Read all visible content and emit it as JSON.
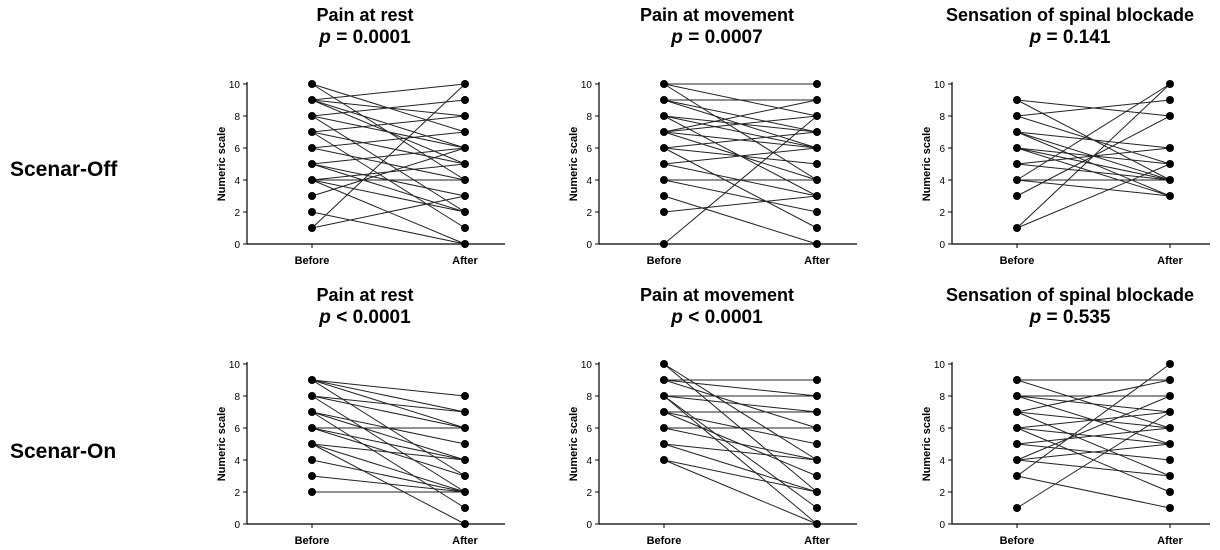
{
  "row_labels": [
    "Scenar-Off",
    "Scenar-On"
  ],
  "chart_data": [
    {
      "type": "line",
      "group": "Scenar-Off",
      "title": "Pain at rest",
      "p_label": "p",
      "p_op": "=",
      "p_value": "0.0001",
      "ylabel": "Numeric scale",
      "categories": [
        "Before",
        "After"
      ],
      "ylim": [
        0,
        10
      ],
      "yticks": [
        0,
        2,
        4,
        6,
        8,
        10
      ],
      "pairs": [
        [
          10,
          4
        ],
        [
          10,
          7
        ],
        [
          9,
          10
        ],
        [
          9,
          8
        ],
        [
          9,
          5
        ],
        [
          9,
          6
        ],
        [
          8,
          9
        ],
        [
          8,
          2
        ],
        [
          8,
          6
        ],
        [
          7,
          8
        ],
        [
          7,
          1
        ],
        [
          7,
          5
        ],
        [
          6,
          7
        ],
        [
          6,
          4
        ],
        [
          5,
          6
        ],
        [
          5,
          3
        ],
        [
          5,
          2
        ],
        [
          4,
          5
        ],
        [
          4,
          4
        ],
        [
          4,
          0
        ],
        [
          4,
          2
        ],
        [
          3,
          6
        ],
        [
          2,
          0
        ],
        [
          1,
          3
        ],
        [
          1,
          10
        ]
      ]
    },
    {
      "type": "line",
      "group": "Scenar-Off",
      "title": "Pain at movement",
      "p_label": "p",
      "p_op": "=",
      "p_value": "0.0007",
      "ylabel": "Numeric scale",
      "categories": [
        "Before",
        "After"
      ],
      "ylim": [
        0,
        10
      ],
      "yticks": [
        0,
        2,
        4,
        6,
        8,
        10
      ],
      "pairs": [
        [
          10,
          10
        ],
        [
          10,
          8
        ],
        [
          10,
          4
        ],
        [
          9,
          7
        ],
        [
          9,
          9
        ],
        [
          9,
          6
        ],
        [
          8,
          7
        ],
        [
          8,
          6
        ],
        [
          8,
          3
        ],
        [
          7,
          8
        ],
        [
          7,
          6
        ],
        [
          7,
          9
        ],
        [
          7,
          4
        ],
        [
          6,
          7
        ],
        [
          6,
          5
        ],
        [
          6,
          1
        ],
        [
          5,
          6
        ],
        [
          5,
          3
        ],
        [
          4,
          4
        ],
        [
          4,
          2
        ],
        [
          3,
          0
        ],
        [
          2,
          3
        ],
        [
          0,
          8
        ]
      ]
    },
    {
      "type": "line",
      "group": "Scenar-Off",
      "title": "Sensation of spinal blockade",
      "p_label": "p",
      "p_op": "=",
      "p_value": "0.141",
      "ylabel": "Numeric scale",
      "categories": [
        "Before",
        "After"
      ],
      "ylim": [
        0,
        10
      ],
      "yticks": [
        0,
        2,
        4,
        6,
        8,
        10
      ],
      "pairs": [
        [
          9,
          8
        ],
        [
          9,
          4
        ],
        [
          8,
          5
        ],
        [
          8,
          9
        ],
        [
          7,
          6
        ],
        [
          7,
          3
        ],
        [
          7,
          4
        ],
        [
          6,
          5
        ],
        [
          6,
          4
        ],
        [
          6,
          3
        ],
        [
          5,
          6
        ],
        [
          5,
          4
        ],
        [
          4,
          4
        ],
        [
          4,
          10
        ],
        [
          4,
          3
        ],
        [
          3,
          8
        ],
        [
          1,
          10
        ],
        [
          1,
          5
        ]
      ]
    },
    {
      "type": "line",
      "group": "Scenar-On",
      "title": "Pain at rest",
      "p_label": "p",
      "p_op": "<",
      "p_value": "0.0001",
      "ylabel": "Numeric scale",
      "categories": [
        "Before",
        "After"
      ],
      "ylim": [
        0,
        10
      ],
      "yticks": [
        0,
        2,
        4,
        6,
        8,
        10
      ],
      "pairs": [
        [
          9,
          8
        ],
        [
          9,
          7
        ],
        [
          9,
          6
        ],
        [
          9,
          3
        ],
        [
          8,
          7
        ],
        [
          8,
          6
        ],
        [
          8,
          2
        ],
        [
          7,
          5
        ],
        [
          7,
          4
        ],
        [
          7,
          1
        ],
        [
          6,
          6
        ],
        [
          6,
          4
        ],
        [
          6,
          3
        ],
        [
          5,
          4
        ],
        [
          5,
          2
        ],
        [
          5,
          0
        ],
        [
          4,
          2
        ],
        [
          3,
          2
        ],
        [
          2,
          2
        ]
      ]
    },
    {
      "type": "line",
      "group": "Scenar-On",
      "title": "Pain at movement",
      "p_label": "p",
      "p_op": "<",
      "p_value": "0.0001",
      "ylabel": "Numeric scale",
      "categories": [
        "Before",
        "After"
      ],
      "ylim": [
        0,
        10
      ],
      "yticks": [
        0,
        2,
        4,
        6,
        8,
        10
      ],
      "pairs": [
        [
          10,
          4
        ],
        [
          10,
          2
        ],
        [
          9,
          9
        ],
        [
          9,
          8
        ],
        [
          9,
          6
        ],
        [
          8,
          8
        ],
        [
          8,
          7
        ],
        [
          8,
          1
        ],
        [
          8,
          0
        ],
        [
          7,
          7
        ],
        [
          7,
          5
        ],
        [
          7,
          3
        ],
        [
          6,
          6
        ],
        [
          6,
          4
        ],
        [
          5,
          4
        ],
        [
          5,
          2
        ],
        [
          4,
          2
        ],
        [
          4,
          0
        ]
      ]
    },
    {
      "type": "line",
      "group": "Scenar-On",
      "title": "Sensation of spinal blockade",
      "p_label": "p",
      "p_op": "=",
      "p_value": "0.535",
      "ylabel": "Numeric scale",
      "categories": [
        "Before",
        "After"
      ],
      "ylim": [
        0,
        10
      ],
      "yticks": [
        0,
        2,
        4,
        6,
        8,
        10
      ],
      "pairs": [
        [
          9,
          9
        ],
        [
          9,
          6
        ],
        [
          8,
          7
        ],
        [
          8,
          8
        ],
        [
          8,
          5
        ],
        [
          7,
          9
        ],
        [
          7,
          6
        ],
        [
          7,
          3
        ],
        [
          6,
          5
        ],
        [
          6,
          7
        ],
        [
          6,
          2
        ],
        [
          5,
          6
        ],
        [
          5,
          4
        ],
        [
          4,
          5
        ],
        [
          4,
          8
        ],
        [
          4,
          3
        ],
        [
          3,
          10
        ],
        [
          3,
          1
        ],
        [
          1,
          7
        ]
      ]
    }
  ]
}
